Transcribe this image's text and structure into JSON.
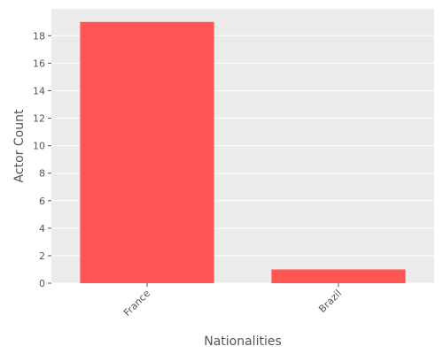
{
  "chart_data": {
    "type": "bar",
    "categories": [
      "France",
      "Brazil"
    ],
    "values": [
      19,
      1
    ],
    "xlabel": "Nationalities",
    "ylabel": "Actor Count",
    "ylim": [
      0,
      19.95
    ],
    "yticks": [
      0,
      2,
      4,
      6,
      8,
      10,
      12,
      14,
      16,
      18
    ],
    "grid": true,
    "colors": {
      "bar": "#ff5555",
      "plot_background": "#ebebeb",
      "grid": "#ffffff"
    }
  }
}
